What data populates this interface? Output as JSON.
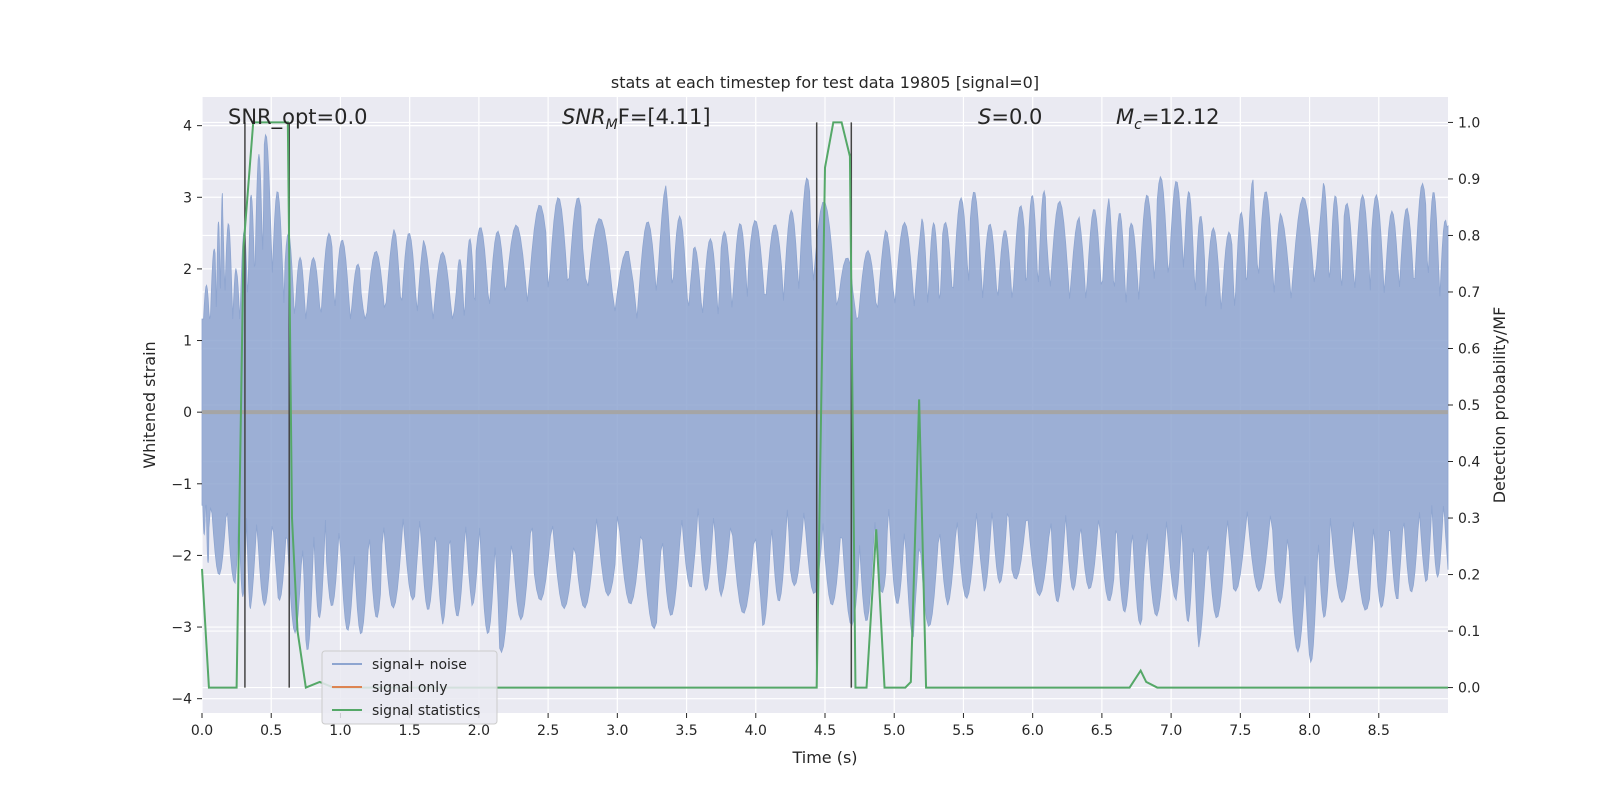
{
  "chart_data": {
    "type": "line",
    "title": "stats at each timestep for test data 19805 [signal=0]",
    "xlabel": "Time (s)",
    "ylabel": "Whitened strain",
    "y2label": "Detection probability/MF",
    "xlim": [
      0,
      9.0
    ],
    "ylim": [
      -4.2,
      4.4
    ],
    "y2lim": [
      -0.045,
      1.045
    ],
    "xticks": [
      0.0,
      0.5,
      1.0,
      1.5,
      2.0,
      2.5,
      3.0,
      3.5,
      4.0,
      4.5,
      5.0,
      5.5,
      6.0,
      6.5,
      7.0,
      7.5,
      8.0,
      8.5
    ],
    "xtick_labels": [
      "0.0",
      "0.5",
      "1.0",
      "1.5",
      "2.0",
      "2.5",
      "3.0",
      "3.5",
      "4.0",
      "4.5",
      "5.0",
      "5.5",
      "6.0",
      "6.5",
      "7.0",
      "7.5",
      "8.0",
      "8.5"
    ],
    "yticks": [
      -4,
      -3,
      -2,
      -1,
      0,
      1,
      2,
      3,
      4
    ],
    "ytick_labels": [
      "−4",
      "−3",
      "−2",
      "−1",
      "0",
      "1",
      "2",
      "3",
      "4"
    ],
    "y2ticks": [
      0.0,
      0.1,
      0.2,
      0.3,
      0.4,
      0.5,
      0.6,
      0.7,
      0.8,
      0.9,
      1.0
    ],
    "y2tick_labels": [
      "0.0",
      "0.1",
      "0.2",
      "0.3",
      "0.4",
      "0.5",
      "0.6",
      "0.7",
      "0.8",
      "0.9",
      "1.0"
    ],
    "grid": true,
    "legend_position": "lower-left",
    "annotations": {
      "snr_opt": "SNR_opt=0.0",
      "snr_mf_main": "SNR",
      "snr_mf_sub": "M",
      "snr_mf_rest": "F=[4.11]",
      "s_main": "S",
      "s_rest": "=0.0",
      "mc_main": "M",
      "mc_sub": "c",
      "mc_rest": "=12.12"
    },
    "vertical_lines_x": [
      0.31,
      0.63,
      4.44,
      4.69
    ],
    "noise_envelope": {
      "upper": [
        [
          0.0,
          1.5
        ],
        [
          0.1,
          2.4
        ],
        [
          0.15,
          3.1
        ],
        [
          0.25,
          2.0
        ],
        [
          0.35,
          3.0
        ],
        [
          0.45,
          4.0
        ],
        [
          0.6,
          2.6
        ],
        [
          0.75,
          2.0
        ],
        [
          0.95,
          2.6
        ],
        [
          1.15,
          2.0
        ],
        [
          1.4,
          2.6
        ],
        [
          1.6,
          2.4
        ],
        [
          1.85,
          2.1
        ],
        [
          1.98,
          2.6
        ],
        [
          2.2,
          2.5
        ],
        [
          2.5,
          3.0
        ],
        [
          2.75,
          3.0
        ],
        [
          3.1,
          2.2
        ],
        [
          3.35,
          3.2
        ],
        [
          3.55,
          2.3
        ],
        [
          3.75,
          2.5
        ],
        [
          3.95,
          2.7
        ],
        [
          4.2,
          2.6
        ],
        [
          4.4,
          3.4
        ],
        [
          4.7,
          2.0
        ],
        [
          4.95,
          2.6
        ],
        [
          5.2,
          2.7
        ],
        [
          5.35,
          2.6
        ],
        [
          5.55,
          3.2
        ],
        [
          5.75,
          2.4
        ],
        [
          5.95,
          3.0
        ],
        [
          6.1,
          3.1
        ],
        [
          6.35,
          2.7
        ],
        [
          6.55,
          3.0
        ],
        [
          6.7,
          2.6
        ],
        [
          6.9,
          3.3
        ],
        [
          7.1,
          3.2
        ],
        [
          7.25,
          2.6
        ],
        [
          7.45,
          2.5
        ],
        [
          7.6,
          3.3
        ],
        [
          7.8,
          2.8
        ],
        [
          8.1,
          3.2
        ],
        [
          8.25,
          2.9
        ],
        [
          8.45,
          3.1
        ],
        [
          8.65,
          2.7
        ],
        [
          8.85,
          3.3
        ],
        [
          9.0,
          2.6
        ]
      ],
      "lower": [
        [
          0.0,
          -1.5
        ],
        [
          0.05,
          -2.2
        ],
        [
          0.25,
          -2.4
        ],
        [
          0.35,
          -2.8
        ],
        [
          0.55,
          -2.6
        ],
        [
          0.75,
          -3.4
        ],
        [
          0.9,
          -2.6
        ],
        [
          1.1,
          -3.2
        ],
        [
          1.3,
          -2.8
        ],
        [
          1.55,
          -2.6
        ],
        [
          1.75,
          -3.0
        ],
        [
          1.95,
          -2.7
        ],
        [
          2.15,
          -3.4
        ],
        [
          2.4,
          -2.6
        ],
        [
          2.7,
          -2.8
        ],
        [
          3.0,
          -2.5
        ],
        [
          3.3,
          -3.1
        ],
        [
          3.55,
          -2.4
        ],
        [
          3.75,
          -2.6
        ],
        [
          4.05,
          -3.0
        ],
        [
          4.25,
          -2.4
        ],
        [
          4.5,
          -2.6
        ],
        [
          4.75,
          -3.1
        ],
        [
          4.95,
          -2.4
        ],
        [
          5.15,
          -3.2
        ],
        [
          5.4,
          -2.7
        ],
        [
          5.65,
          -2.5
        ],
        [
          5.85,
          -2.3
        ],
        [
          6.15,
          -2.7
        ],
        [
          6.35,
          -2.4
        ],
        [
          6.6,
          -2.7
        ],
        [
          6.8,
          -3.0
        ],
        [
          7.05,
          -2.6
        ],
        [
          7.2,
          -3.3
        ],
        [
          7.45,
          -2.5
        ],
        [
          7.75,
          -2.5
        ],
        [
          7.98,
          -3.7
        ],
        [
          8.15,
          -2.6
        ],
        [
          8.45,
          -2.8
        ],
        [
          8.65,
          -2.6
        ],
        [
          8.85,
          -2.4
        ],
        [
          9.0,
          -2.2
        ]
      ]
    },
    "series": [
      {
        "name": "signal+ noise",
        "color": "#8ea5d0"
      },
      {
        "name": "signal only",
        "color": "#dd8452",
        "points": [
          [
            0.0,
            0.0
          ],
          [
            9.0,
            0.0
          ]
        ]
      },
      {
        "name": "signal statistics",
        "color": "#55a868",
        "axis": "right",
        "points": [
          [
            0.0,
            0.21
          ],
          [
            0.05,
            0.0
          ],
          [
            0.25,
            0.0
          ],
          [
            0.3,
            0.78
          ],
          [
            0.37,
            1.0
          ],
          [
            0.43,
            1.0
          ],
          [
            0.5,
            1.0
          ],
          [
            0.56,
            1.0
          ],
          [
            0.62,
            1.0
          ],
          [
            0.65,
            0.3
          ],
          [
            0.69,
            0.1
          ],
          [
            0.75,
            0.0
          ],
          [
            0.85,
            0.01
          ],
          [
            0.95,
            0.0
          ],
          [
            4.44,
            0.0
          ],
          [
            4.5,
            0.92
          ],
          [
            4.56,
            1.0
          ],
          [
            4.62,
            1.0
          ],
          [
            4.68,
            0.94
          ],
          [
            4.72,
            0.0
          ],
          [
            4.8,
            0.0
          ],
          [
            4.87,
            0.28
          ],
          [
            4.93,
            0.0
          ],
          [
            5.0,
            0.0
          ],
          [
            5.08,
            0.0
          ],
          [
            5.12,
            0.01
          ],
          [
            5.18,
            0.51
          ],
          [
            5.23,
            0.0
          ],
          [
            6.7,
            0.0
          ],
          [
            6.78,
            0.03
          ],
          [
            6.82,
            0.01
          ],
          [
            6.9,
            0.0
          ],
          [
            9.0,
            0.0
          ]
        ]
      }
    ]
  }
}
